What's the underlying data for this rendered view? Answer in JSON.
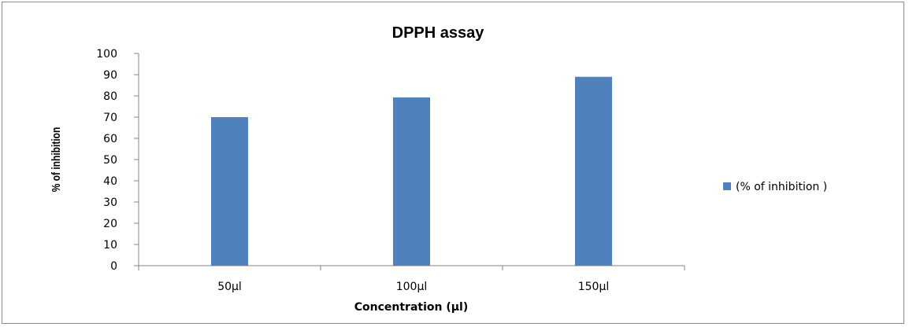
{
  "chart_data": {
    "type": "bar",
    "title": "DPPH assay",
    "xlabel": "Concentration  (µl)",
    "ylabel": "% of inhibition",
    "categories": [
      "50µl",
      "100µl",
      "150µl"
    ],
    "series": [
      {
        "name": "(% of inhibition )",
        "values": [
          70,
          79.3,
          89
        ],
        "color": "#4f81bd"
      }
    ],
    "ylim": [
      0,
      100
    ],
    "yticks": [
      "0",
      "10",
      "20",
      "30",
      "40",
      "50",
      "60",
      "70",
      "80",
      "90",
      "100"
    ],
    "grid": false,
    "legend_position": "right"
  }
}
